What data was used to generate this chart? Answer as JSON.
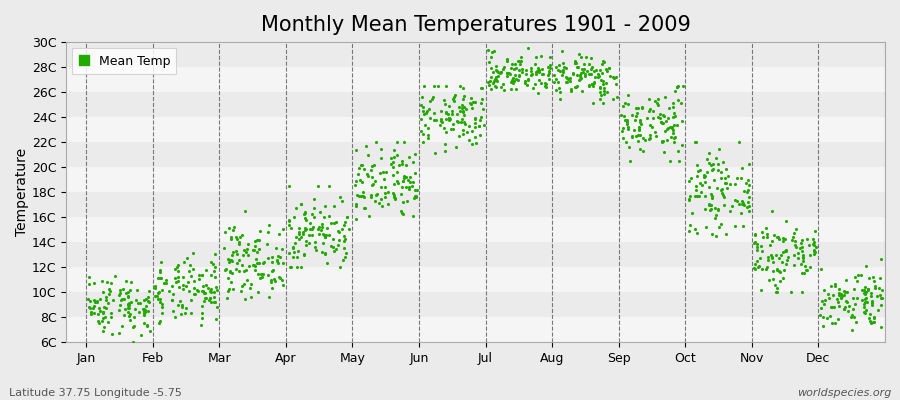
{
  "title": "Monthly Mean Temperatures 1901 - 2009",
  "ylabel": "Temperature",
  "xlabel": "",
  "subtitle": "Latitude 37.75 Longitude -5.75",
  "watermark": "worldspecies.org",
  "dot_color": "#22AA00",
  "background_color": "#EBEBEB",
  "plot_bg_color": "#EBEBEB",
  "ylim": [
    6,
    30
  ],
  "yticks": [
    6,
    8,
    10,
    12,
    14,
    16,
    18,
    20,
    22,
    24,
    26,
    28,
    30
  ],
  "ytick_labels": [
    "6C",
    "8C",
    "10C",
    "12C",
    "14C",
    "16C",
    "18C",
    "20C",
    "22C",
    "24C",
    "26C",
    "28C",
    "30C"
  ],
  "months": [
    "Jan",
    "Feb",
    "Mar",
    "Apr",
    "May",
    "Jun",
    "Jul",
    "Aug",
    "Sep",
    "Oct",
    "Nov",
    "Dec"
  ],
  "monthly_mean": [
    9.0,
    10.0,
    12.5,
    14.8,
    18.5,
    24.0,
    27.5,
    27.2,
    23.5,
    18.0,
    13.0,
    9.5
  ],
  "monthly_std": [
    1.2,
    1.3,
    1.4,
    1.5,
    1.6,
    1.3,
    0.8,
    0.9,
    1.4,
    1.5,
    1.5,
    1.2
  ],
  "monthly_min": [
    6.0,
    7.0,
    9.5,
    12.0,
    15.0,
    21.0,
    25.5,
    25.0,
    20.5,
    14.5,
    10.0,
    7.0
  ],
  "monthly_max": [
    13.0,
    13.5,
    16.5,
    18.5,
    22.0,
    26.5,
    29.8,
    29.8,
    26.5,
    22.0,
    16.5,
    13.0
  ],
  "n_years": 109,
  "seed": 42,
  "dot_size": 5,
  "legend_label": "Mean Temp",
  "title_fontsize": 15,
  "axis_fontsize": 10,
  "tick_fontsize": 9
}
